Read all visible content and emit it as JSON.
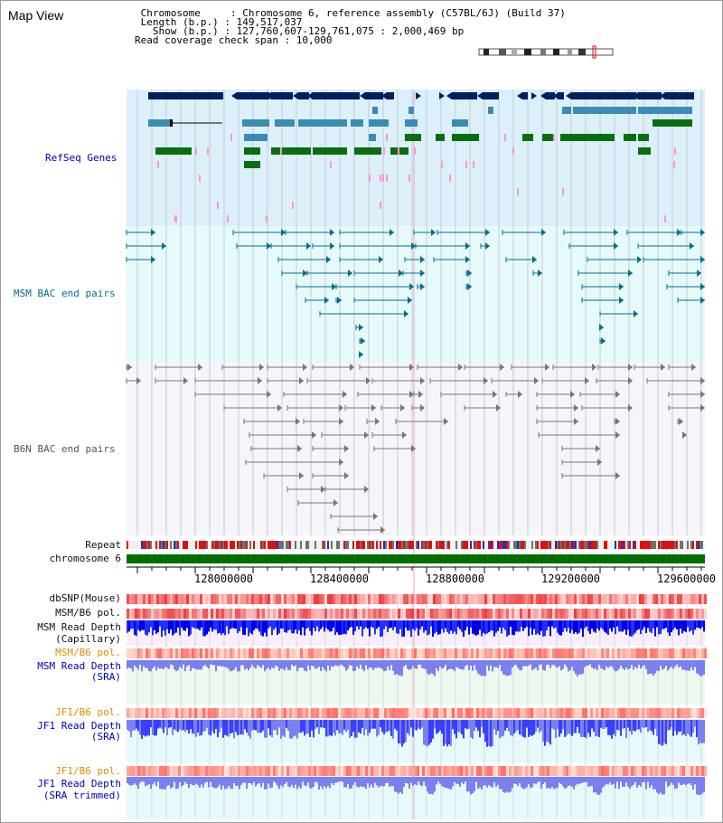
{
  "header": {
    "view_title": "Map View",
    "chromosome_line": " Chromosome     : Chromosome 6, reference assembly (C57BL/6J) (Build 37)",
    "length_line": " Length (b.p.) : 149,517,037",
    "show_line": "   Show (b.p.) : 127,760,607-129,761,075 : 2,000,469 bp",
    "coverage_line": "Read coverage check span : 10,000"
  },
  "tracks": {
    "refseq": "RefSeq Genes",
    "msm_bac": "MSM BAC end pairs",
    "b6n_bac": "B6N BAC end pairs",
    "repeat": "Repeat",
    "chromosome": "chromosome 6",
    "dbsnp": "dbSNP(Mouse)",
    "msm_b6_pol_1": "MSM/B6 pol.",
    "msm_read_depth_cap_1": "MSM Read Depth",
    "msm_read_depth_cap_2": "(Capillary)",
    "msm_b6_pol_2": "MSM/B6 pol.",
    "msm_read_depth_sra_1": "MSM Read Depth",
    "msm_read_depth_sra_2": "(SRA)",
    "jf1_b6_pol_1": "JF1/B6 pol.",
    "jf1_read_depth_1": "JF1 Read Depth",
    "jf1_read_depth_2": "(SRA)",
    "jf1_b6_pol_2": "JF1/B6 pol.",
    "jf1_read_depth_trim_1": "JF1 Read Depth",
    "jf1_read_depth_trim_2": "(SRA trimmed)"
  },
  "axis": {
    "ticks": [
      "128000000",
      "128400000",
      "128800000",
      "129200000",
      "129600000"
    ]
  },
  "colors": {
    "gene_navy": "#001f5f",
    "gene_steel": "#3a8cb4",
    "gene_green": "#0a6e10",
    "gene_pink": "#ff96c8",
    "refseq_bg": "#dcf0fa",
    "msm_bg": "#e6fafa",
    "b6n_bg": "#f5f5fa",
    "msm_line": "#00708c",
    "b6n_line": "#777777",
    "chrom_green": "#006e00",
    "depth_dark_blue": "#0000e6",
    "depth_light_blue": "#7a80f0"
  }
}
